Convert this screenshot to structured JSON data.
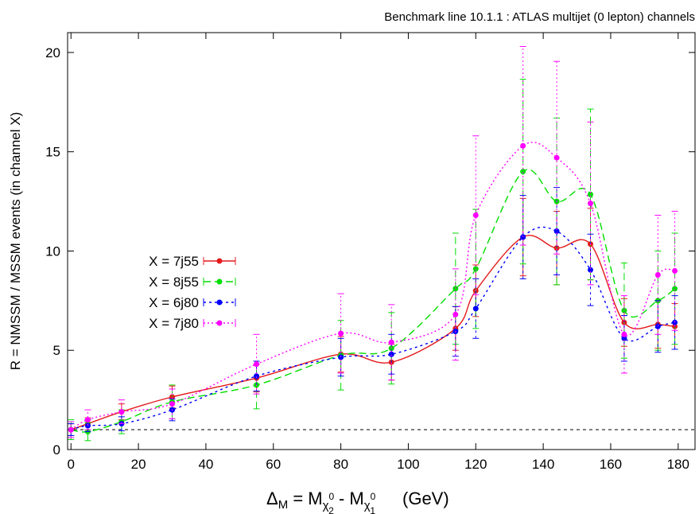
{
  "chart_data": {
    "type": "line",
    "title": "Benchmark line 10.1.1 : ATLAS multijet (0 lepton) channels",
    "ylabel": "R = NMSSM / MSSM events (in channel X)",
    "xlabel": {
      "prefix": "Δ",
      "prefix_sub": "M",
      "mid": " = M",
      "chi": "χ",
      "sup1": "0",
      "sub1": "2",
      "minus": "  - M",
      "sup2": "0",
      "sub2": "1",
      "unit": "(GeV)"
    },
    "xlim": [
      -1,
      185
    ],
    "ylim": [
      0,
      21
    ],
    "xticks": [
      "0",
      "20",
      "40",
      "60",
      "80",
      "100",
      "120",
      "140",
      "160",
      "180"
    ],
    "yticks": [
      "0",
      "5",
      "10",
      "15",
      "20"
    ],
    "reference_line": 1,
    "legend_position": "left-middle",
    "series": [
      {
        "name": "X = 7j55",
        "color": "#e41a1c",
        "dash": "",
        "x": [
          0,
          5,
          15,
          30,
          55,
          80,
          95,
          114,
          120,
          134,
          144,
          154,
          164,
          174,
          179
        ],
        "y": [
          1.0,
          1.3,
          1.9,
          2.65,
          3.6,
          4.8,
          4.4,
          6.1,
          8.0,
          10.7,
          10.15,
          10.35,
          6.4,
          6.3,
          6.2
        ],
        "err": [
          0.3,
          0.3,
          0.4,
          0.55,
          0.7,
          0.9,
          0.9,
          1.1,
          1.3,
          1.95,
          1.85,
          1.8,
          1.2,
          1.2,
          1.15
        ]
      },
      {
        "name": "X = 8j55",
        "color": "#00dd00",
        "dash": "9,5",
        "x": [
          0,
          5,
          15,
          30,
          55,
          80,
          95,
          114,
          120,
          134,
          144,
          154,
          164,
          174,
          179
        ],
        "y": [
          1.0,
          0.9,
          1.4,
          2.4,
          3.25,
          4.75,
          5.1,
          8.1,
          9.1,
          14.0,
          12.5,
          12.85,
          7.0,
          7.5,
          8.1
        ],
        "err": [
          0.5,
          0.45,
          0.6,
          0.85,
          1.2,
          1.75,
          1.8,
          2.8,
          3.0,
          4.65,
          4.2,
          4.3,
          2.4,
          2.5,
          2.8
        ]
      },
      {
        "name": "X = 6j80",
        "color": "#0000ff",
        "dash": "3,4",
        "x": [
          0,
          5,
          15,
          30,
          55,
          80,
          95,
          114,
          120,
          134,
          144,
          154,
          164,
          174,
          179
        ],
        "y": [
          1.0,
          1.2,
          1.3,
          2.0,
          3.7,
          4.65,
          4.8,
          5.95,
          7.1,
          10.7,
          11.0,
          9.05,
          5.6,
          6.2,
          6.4
        ],
        "err": [
          0.3,
          0.3,
          0.35,
          0.55,
          0.75,
          0.95,
          1.0,
          1.25,
          1.5,
          2.1,
          2.2,
          1.8,
          1.15,
          1.3,
          1.35
        ]
      },
      {
        "name": "X = 7j80",
        "color": "#ff00ff",
        "dash": "2,3",
        "x": [
          0,
          5,
          15,
          30,
          55,
          80,
          95,
          114,
          120,
          134,
          144,
          154,
          164,
          174,
          179
        ],
        "y": [
          1.0,
          1.5,
          1.9,
          2.3,
          4.3,
          5.85,
          5.4,
          6.8,
          11.8,
          15.3,
          14.7,
          12.4,
          5.8,
          8.8,
          9.0
        ],
        "err": [
          0.4,
          0.5,
          0.6,
          0.75,
          1.5,
          2.0,
          1.9,
          2.3,
          4.0,
          5.0,
          4.85,
          4.1,
          1.95,
          3.0,
          3.0
        ]
      }
    ]
  }
}
